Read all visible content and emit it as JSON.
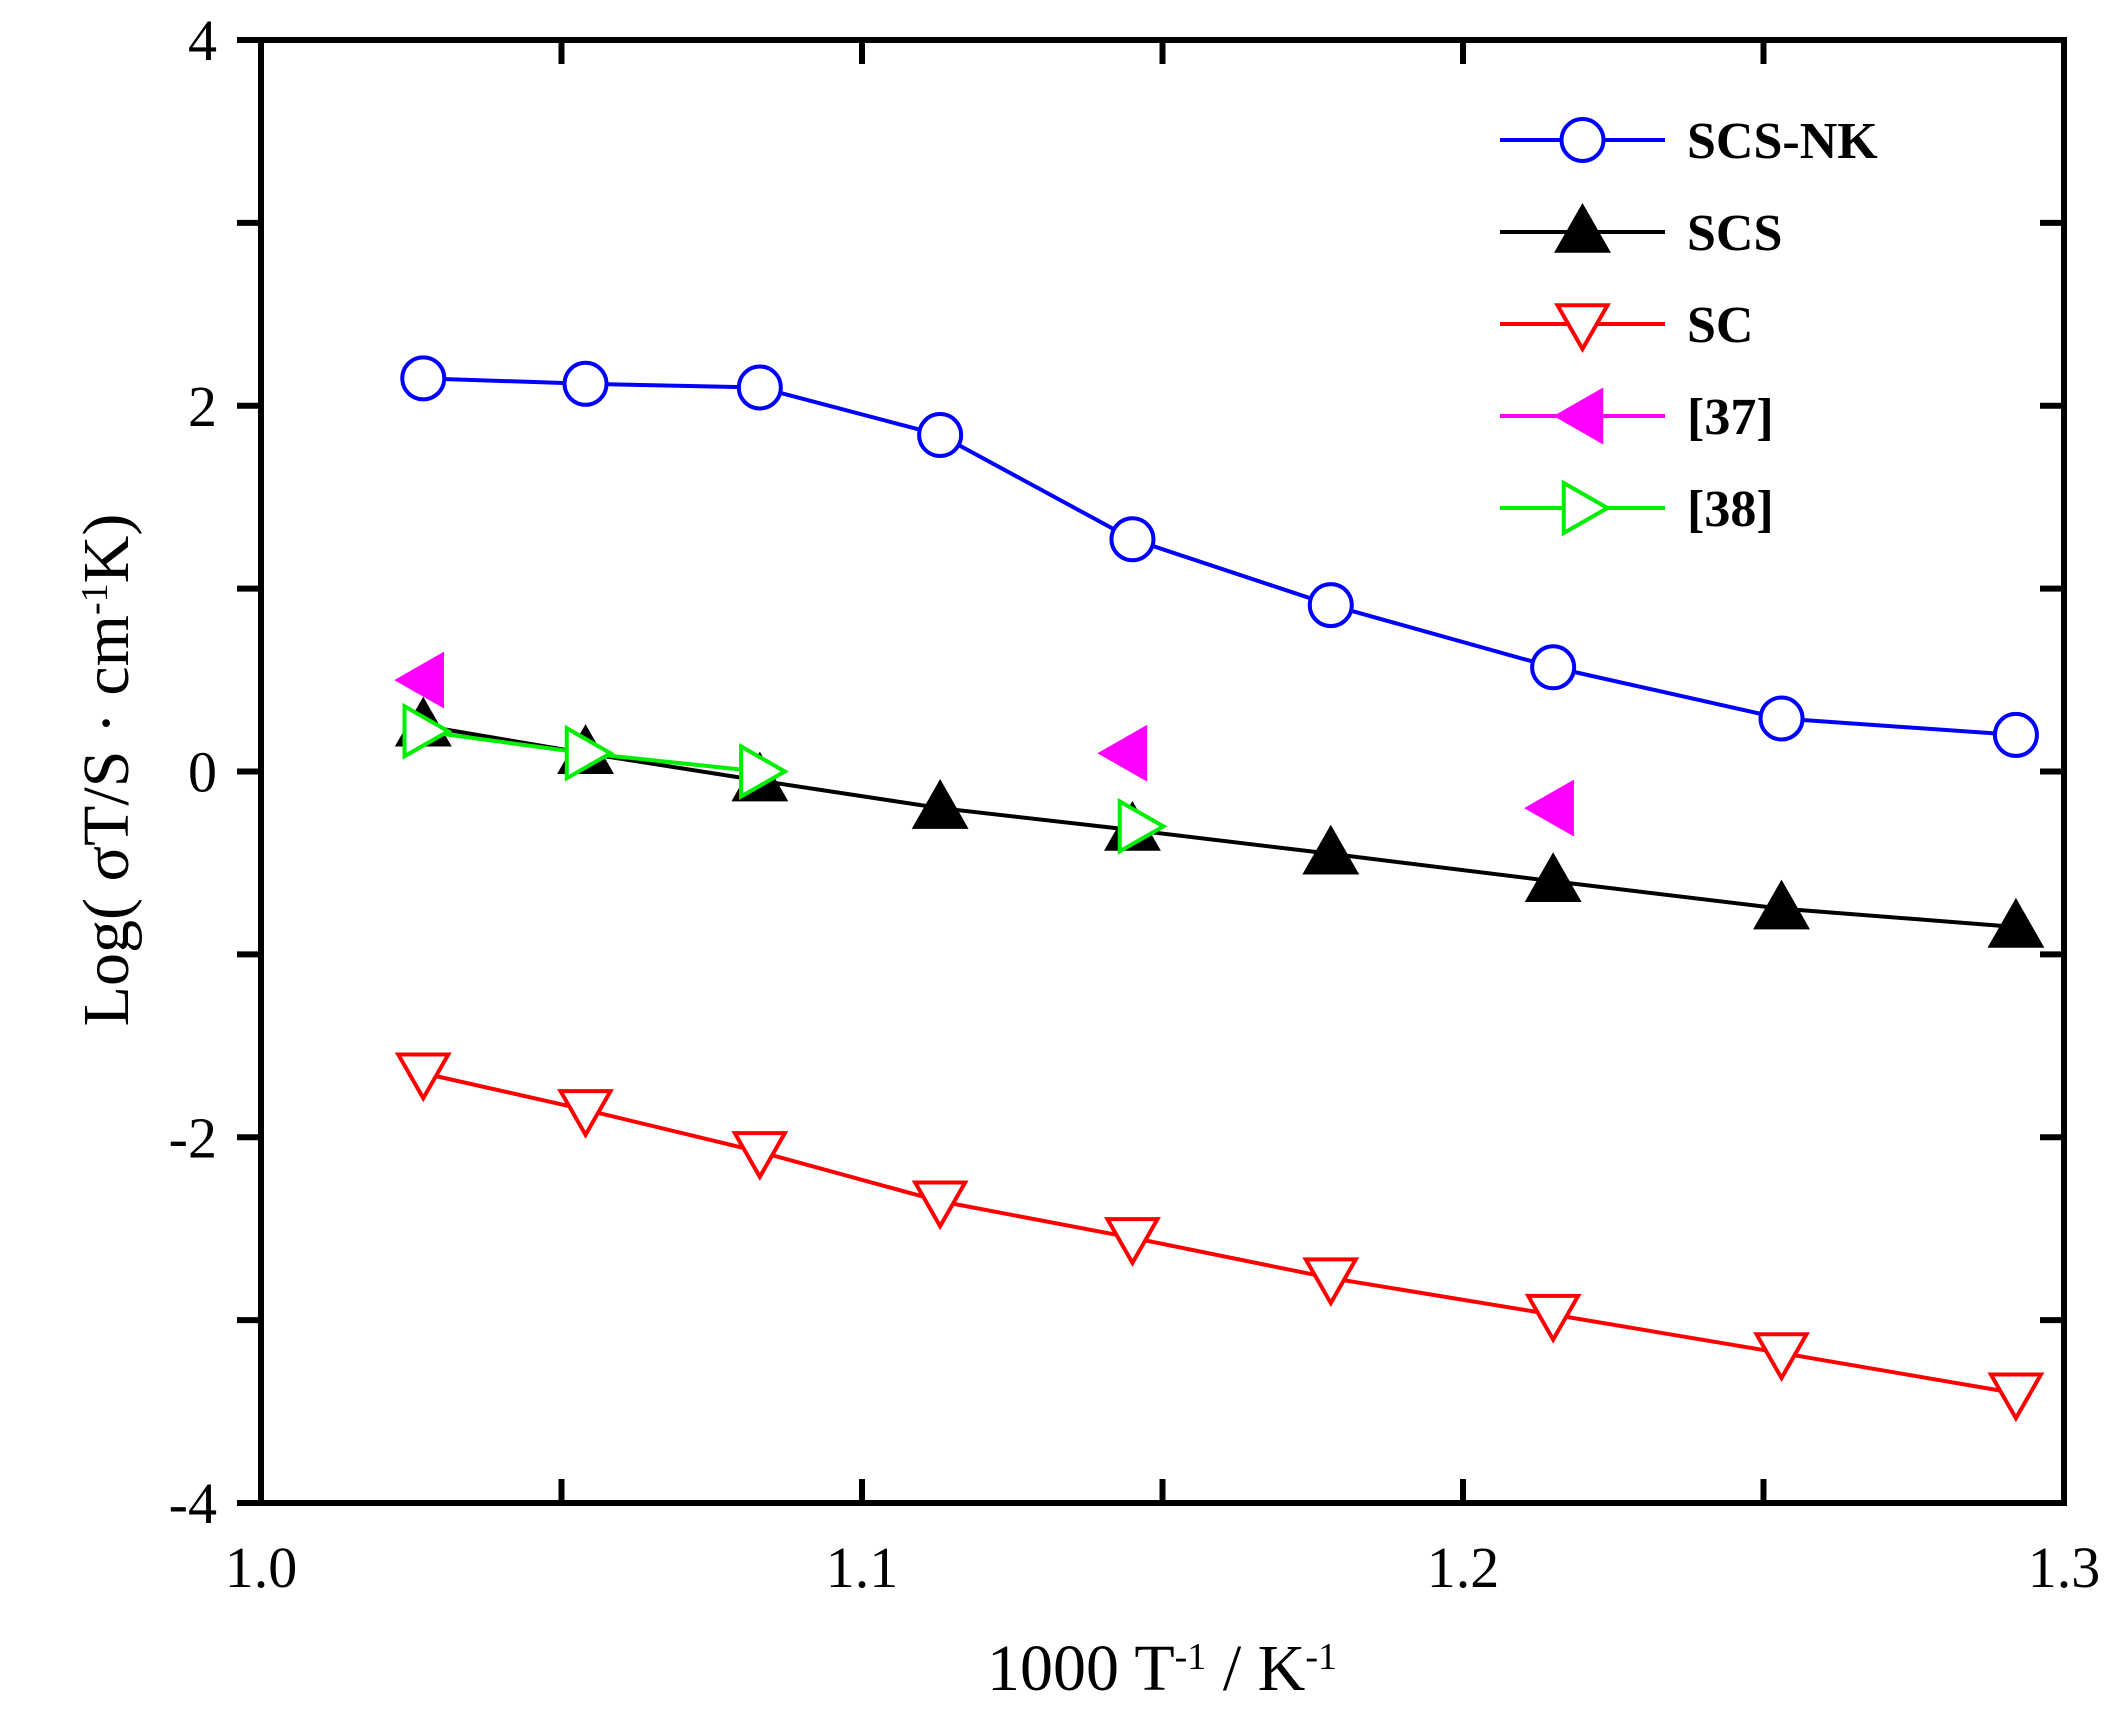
{
  "chart_data": {
    "type": "line",
    "title": "",
    "xlabel": "1000 T",
    "xlabel_sup1": "-1",
    "xlabel_mid": " / K",
    "xlabel_sup2": "-1",
    "ylabel": "Log( σT/S · cm",
    "ylabel_sup": "-1",
    "ylabel_end": "K)",
    "xlim": [
      1.0,
      1.3
    ],
    "ylim": [
      -4,
      4
    ],
    "x_ticks": [
      1.0,
      1.1,
      1.2,
      1.3
    ],
    "x_tick_labels": [
      "1.0",
      "1.1",
      "1.2",
      "1.3"
    ],
    "x_minor_ticks": [
      1.05,
      1.15,
      1.25
    ],
    "y_ticks": [
      -4,
      -2,
      0,
      2,
      4
    ],
    "y_tick_labels": [
      "-4",
      "-2",
      "0",
      "2",
      "4"
    ],
    "y_minor_ticks": [
      -3,
      -1,
      1,
      3
    ],
    "grid": false,
    "legend_position": "top-right",
    "series": [
      {
        "name": "SCS-NK",
        "color": "#0000ff",
        "marker": "circle-open",
        "line": true,
        "x": [
          1.027,
          1.054,
          1.083,
          1.113,
          1.145,
          1.178,
          1.215,
          1.253,
          1.292
        ],
        "y": [
          2.15,
          2.12,
          2.1,
          1.84,
          1.27,
          0.91,
          0.57,
          0.29,
          0.2
        ]
      },
      {
        "name": "SCS",
        "color": "#000000",
        "marker": "triangle-up-filled",
        "line": true,
        "x": [
          1.027,
          1.054,
          1.083,
          1.113,
          1.145,
          1.178,
          1.215,
          1.253,
          1.292
        ],
        "y": [
          0.25,
          0.1,
          -0.05,
          -0.2,
          -0.32,
          -0.45,
          -0.6,
          -0.75,
          -0.85
        ]
      },
      {
        "name": "SC",
        "color": "#ff0000",
        "marker": "triangle-down-open",
        "line": true,
        "x": [
          1.027,
          1.054,
          1.083,
          1.113,
          1.145,
          1.178,
          1.215,
          1.253,
          1.292
        ],
        "y": [
          -1.65,
          -1.85,
          -2.08,
          -2.35,
          -2.55,
          -2.77,
          -2.97,
          -3.18,
          -3.4
        ]
      },
      {
        "name": "[37]",
        "color": "#ff00ff",
        "marker": "triangle-left-filled",
        "line": false,
        "x": [
          1.027,
          1.144,
          1.215
        ],
        "y": [
          0.5,
          0.1,
          -0.2
        ]
      },
      {
        "name": "[38]",
        "color": "#00ee00",
        "marker": "triangle-right-open",
        "line": true,
        "x": [
          1.027,
          1.054,
          1.083
        ],
        "y": [
          0.22,
          0.1,
          0.0
        ],
        "extra_points": {
          "x": [
            1.146
          ],
          "y": [
            -0.3
          ]
        }
      }
    ]
  }
}
